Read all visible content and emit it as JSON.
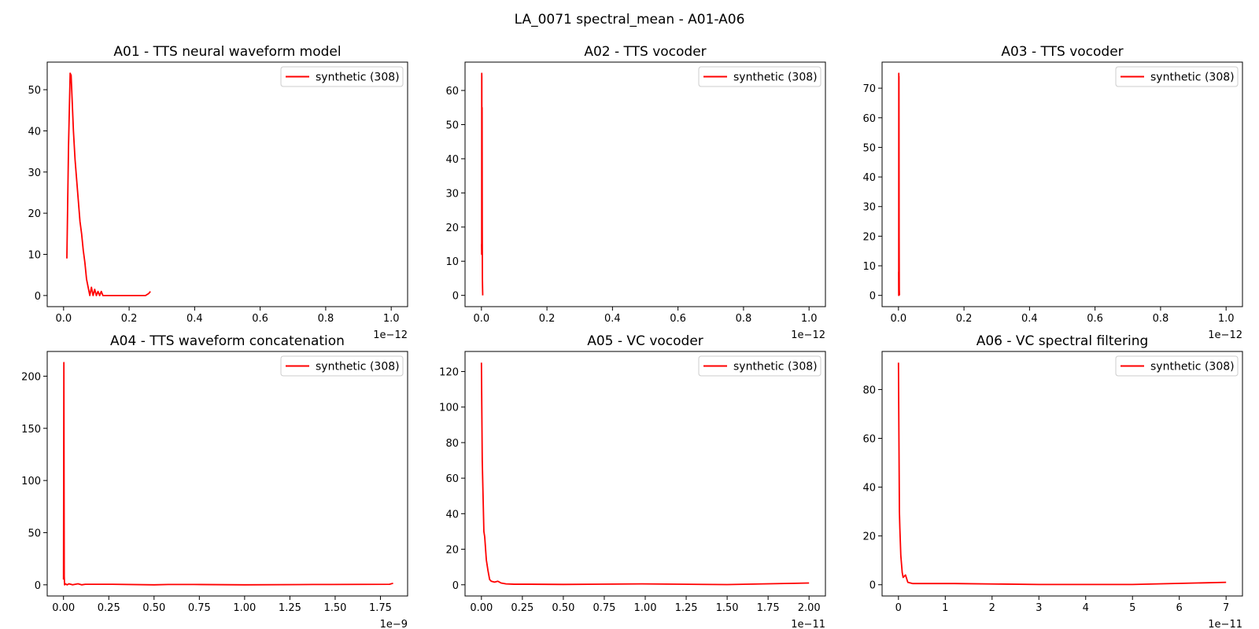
{
  "figure_title": "LA_0071 spectral_mean - A01-A06",
  "colors": {
    "series": "#ff0000",
    "axis": "#000000",
    "legend_border": "#cccccc"
  },
  "chart_data": [
    {
      "type": "line",
      "title": "A01 - TTS neural waveform model",
      "x_offset_label": "1e−12",
      "xlim": [
        -0.05,
        1.05
      ],
      "ylim": [
        -2.7,
        56.7
      ],
      "xticks": [
        0.0,
        0.2,
        0.4,
        0.6,
        0.8,
        1.0
      ],
      "xtick_labels": [
        "0.0",
        "0.2",
        "0.4",
        "0.6",
        "0.8",
        "1.0"
      ],
      "yticks": [
        0,
        10,
        20,
        30,
        40,
        50
      ],
      "ytick_labels": [
        "0",
        "10",
        "20",
        "30",
        "40",
        "50"
      ],
      "legend_position": "top-right",
      "series": [
        {
          "name": "synthetic (308)",
          "color": "#ff0000",
          "x": [
            0.01,
            0.015,
            0.02,
            0.023,
            0.03,
            0.035,
            0.04,
            0.05,
            0.055,
            0.06,
            0.065,
            0.07,
            0.075,
            0.08,
            0.085,
            0.09,
            0.095,
            0.1,
            0.105,
            0.11,
            0.115,
            0.12,
            0.125,
            0.13,
            0.15,
            0.2,
            0.25,
            0.26,
            0.265
          ],
          "y": [
            9,
            36,
            54,
            53.5,
            40,
            33,
            28,
            18,
            15,
            11,
            8,
            4,
            2,
            0,
            2,
            0,
            1.5,
            0,
            1,
            0,
            1,
            0,
            0,
            0,
            0,
            0,
            0,
            0.5,
            1
          ]
        }
      ]
    },
    {
      "type": "line",
      "title": "A02 - TTS vocoder",
      "x_offset_label": "1e−12",
      "xlim": [
        -0.05,
        1.05
      ],
      "ylim": [
        -3.3,
        68.3
      ],
      "xticks": [
        0.0,
        0.2,
        0.4,
        0.6,
        0.8,
        1.0
      ],
      "xtick_labels": [
        "0.0",
        "0.2",
        "0.4",
        "0.6",
        "0.8",
        "1.0"
      ],
      "yticks": [
        0,
        10,
        20,
        30,
        40,
        50,
        60
      ],
      "ytick_labels": [
        "0",
        "10",
        "20",
        "30",
        "40",
        "50",
        "60"
      ],
      "legend_position": "top-right",
      "series": [
        {
          "name": "synthetic (308)",
          "color": "#ff0000",
          "x": [
            0.0005,
            0.0008,
            0.001,
            0.0012,
            0.0015,
            0.002,
            0.0025,
            0.003,
            0.0035,
            0.004
          ],
          "y": [
            15,
            12,
            65,
            64,
            30,
            55,
            20,
            5,
            2,
            0
          ]
        }
      ]
    },
    {
      "type": "line",
      "title": "A03 - TTS vocoder",
      "x_offset_label": "1e−12",
      "xlim": [
        -0.05,
        1.05
      ],
      "ylim": [
        -3.8,
        78.8
      ],
      "xticks": [
        0.0,
        0.2,
        0.4,
        0.6,
        0.8,
        1.0
      ],
      "xtick_labels": [
        "0.0",
        "0.2",
        "0.4",
        "0.6",
        "0.8",
        "1.0"
      ],
      "yticks": [
        0,
        10,
        20,
        30,
        40,
        50,
        60,
        70
      ],
      "ytick_labels": [
        "0",
        "10",
        "20",
        "30",
        "40",
        "50",
        "60",
        "70"
      ],
      "legend_position": "top-right",
      "series": [
        {
          "name": "synthetic (308)",
          "color": "#ff0000",
          "x": [
            0.0005,
            0.0008,
            0.001,
            0.0012,
            0.0015,
            0.002,
            0.0025,
            0.003
          ],
          "y": [
            8,
            0,
            75,
            16,
            74,
            20,
            2,
            0
          ]
        }
      ]
    },
    {
      "type": "line",
      "title": "A04 - TTS waveform concatenation",
      "x_offset_label": "1e−9",
      "xlim": [
        -0.09,
        1.9
      ],
      "ylim": [
        -10.7,
        223.7
      ],
      "xticks": [
        0.0,
        0.25,
        0.5,
        0.75,
        1.0,
        1.25,
        1.5,
        1.75
      ],
      "xtick_labels": [
        "0.00",
        "0.25",
        "0.50",
        "0.75",
        "1.00",
        "1.25",
        "1.50",
        "1.75"
      ],
      "yticks": [
        0,
        50,
        100,
        150,
        200
      ],
      "ytick_labels": [
        "0",
        "50",
        "100",
        "150",
        "200"
      ],
      "legend_position": "top-right",
      "series": [
        {
          "name": "synthetic (308)",
          "color": "#ff0000",
          "x": [
            0.0,
            0.002,
            0.004,
            0.006,
            0.01,
            0.02,
            0.03,
            0.05,
            0.08,
            0.1,
            0.12,
            0.18,
            0.25,
            0.27,
            0.5,
            0.58,
            0.72,
            1.0,
            1.38,
            1.48,
            1.8,
            1.82
          ],
          "y": [
            5,
            213,
            8,
            0,
            1,
            0,
            1,
            0,
            1,
            0,
            0.5,
            0.5,
            0.5,
            0.5,
            0,
            0.3,
            0.3,
            0,
            0.3,
            0.3,
            0.5,
            1.5
          ]
        }
      ]
    },
    {
      "type": "line",
      "title": "A05 - VC vocoder",
      "x_offset_label": "1e−11",
      "xlim": [
        -0.1,
        2.1
      ],
      "ylim": [
        -6.3,
        131.3
      ],
      "xticks": [
        0.0,
        0.25,
        0.5,
        0.75,
        1.0,
        1.25,
        1.5,
        1.75,
        2.0
      ],
      "xtick_labels": [
        "0.00",
        "0.25",
        "0.50",
        "0.75",
        "1.00",
        "1.25",
        "1.50",
        "1.75",
        "2.00"
      ],
      "yticks": [
        0,
        20,
        40,
        60,
        80,
        100,
        120
      ],
      "ytick_labels": [
        "0",
        "20",
        "40",
        "60",
        "80",
        "100",
        "120"
      ],
      "legend_position": "top-right",
      "series": [
        {
          "name": "synthetic (308)",
          "color": "#ff0000",
          "x": [
            0.0,
            0.005,
            0.01,
            0.015,
            0.02,
            0.03,
            0.04,
            0.05,
            0.06,
            0.08,
            0.1,
            0.12,
            0.15,
            0.2,
            0.3,
            0.5,
            0.98,
            1.5,
            2.0
          ],
          "y": [
            125,
            70,
            50,
            30,
            27,
            14,
            8,
            3,
            2,
            1.5,
            2,
            1,
            0.5,
            0.3,
            0.3,
            0.2,
            0.5,
            0.1,
            1
          ]
        }
      ]
    },
    {
      "type": "line",
      "title": "A06 - VC spectral filtering",
      "x_offset_label": "1e−11",
      "xlim": [
        -0.35,
        7.35
      ],
      "ylim": [
        -4.6,
        95.6
      ],
      "xticks": [
        0,
        1,
        2,
        3,
        4,
        5,
        6,
        7
      ],
      "xtick_labels": [
        "0",
        "1",
        "2",
        "3",
        "4",
        "5",
        "6",
        "7"
      ],
      "yticks": [
        0,
        20,
        40,
        60,
        80
      ],
      "ytick_labels": [
        "0",
        "20",
        "40",
        "60",
        "80"
      ],
      "legend_position": "top-right",
      "series": [
        {
          "name": "synthetic (308)",
          "color": "#ff0000",
          "x": [
            0.0,
            0.01,
            0.02,
            0.03,
            0.05,
            0.08,
            0.1,
            0.15,
            0.2,
            0.3,
            0.5,
            1.2,
            3.0,
            5.0,
            7.0
          ],
          "y": [
            91,
            60,
            30,
            23,
            12,
            5,
            3,
            4,
            1,
            0.5,
            0.5,
            0.5,
            0.1,
            0.1,
            1
          ]
        }
      ]
    }
  ]
}
